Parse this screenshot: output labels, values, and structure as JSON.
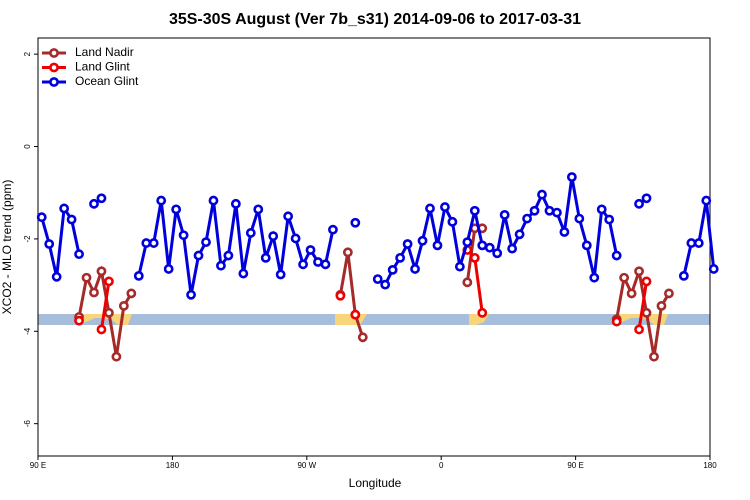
{
  "chart_data": {
    "type": "line",
    "title": "35S-30S August (Ver 7b_s31)   2014-09-06 to 2017-03-31",
    "x_label": "Longitude",
    "y_label": "XCO2 - MLO trend (ppm)",
    "xlim": [
      90,
      540
    ],
    "ylim": [
      -6.7,
      2.35
    ],
    "xticks": [
      {
        "value": 90,
        "label": "90 E"
      },
      180,
      {
        "value": 270,
        "label": "90 W"
      },
      {
        "value": 360,
        "label": "0"
      },
      {
        "value": 450,
        "label": "90 E"
      },
      {
        "value": 540,
        "label": "180"
      }
    ],
    "yticks": [
      2,
      0,
      -2,
      -4,
      -6
    ],
    "legend": "top-left",
    "x": [
      92.5,
      97.5,
      102.5,
      107.5,
      112.5,
      117.5,
      122.5,
      127.5,
      132.5,
      137.5,
      142.5,
      147.5,
      152.5,
      157.5,
      162.5,
      167.5,
      172.5,
      177.5,
      182.5,
      187.5,
      192.5,
      197.5,
      202.5,
      207.5,
      212.5,
      217.5,
      222.5,
      227.5,
      232.5,
      237.5,
      242.5,
      247.5,
      252.5,
      257.5,
      262.5,
      267.5,
      272.5,
      277.5,
      282.5,
      287.5,
      292.5,
      297.5,
      302.5,
      307.5,
      312.5,
      317.5,
      322.5,
      327.5,
      332.5,
      337.5,
      342.5,
      347.5,
      352.5,
      357.5,
      362.5,
      367.5,
      372.5,
      377.5,
      382.5,
      387.5,
      392.5,
      397.5,
      402.5,
      407.5,
      412.5,
      417.5,
      422.5,
      427.5,
      432.5,
      437.5,
      442.5,
      447.5,
      452.5,
      457.5,
      462.5,
      467.5,
      472.5,
      477.5,
      482.5,
      487.5,
      492.5,
      497.5,
      502.5,
      507.5,
      512.5,
      517.5,
      522.5,
      527.5,
      532.5,
      537.5,
      542.5
    ],
    "series": [
      {
        "name": "Land Nadir",
        "color": "#a52a2a",
        "values": [
          null,
          null,
          null,
          null,
          null,
          -3.69,
          -2.84,
          -3.16,
          -2.7,
          -3.6,
          -4.55,
          -3.45,
          -3.18,
          null,
          null,
          null,
          null,
          null,
          null,
          null,
          null,
          null,
          null,
          null,
          null,
          null,
          null,
          null,
          null,
          null,
          null,
          null,
          null,
          null,
          null,
          null,
          null,
          null,
          null,
          null,
          -3.21,
          -2.29,
          -3.64,
          -4.13,
          null,
          null,
          null,
          null,
          null,
          null,
          null,
          null,
          null,
          null,
          null,
          null,
          null,
          -2.94,
          -1.77,
          -1.77,
          null,
          null,
          null,
          null,
          null,
          null,
          null,
          null,
          null,
          null,
          null,
          null,
          null,
          null,
          null,
          null,
          null,
          -3.74,
          -2.84,
          -3.18,
          -2.7,
          -3.6,
          -4.55,
          -3.45,
          -3.18,
          null,
          null,
          null,
          null,
          null,
          null
        ]
      },
      {
        "name": "Land Glint",
        "color": "#ee0000",
        "values": [
          null,
          null,
          null,
          null,
          null,
          -3.77,
          null,
          null,
          -3.96,
          -2.92,
          null,
          null,
          null,
          null,
          null,
          null,
          null,
          null,
          null,
          null,
          null,
          null,
          null,
          null,
          null,
          null,
          null,
          null,
          null,
          null,
          null,
          null,
          null,
          null,
          null,
          null,
          null,
          null,
          null,
          null,
          -3.23,
          null,
          -3.64,
          null,
          null,
          null,
          null,
          null,
          null,
          null,
          null,
          null,
          null,
          null,
          null,
          null,
          null,
          -2.24,
          -2.41,
          -3.6,
          null,
          null,
          null,
          null,
          null,
          null,
          null,
          null,
          null,
          null,
          null,
          null,
          null,
          null,
          null,
          null,
          null,
          -3.79,
          null,
          null,
          -3.96,
          -2.92,
          null,
          null,
          null,
          null,
          null,
          null,
          null,
          null,
          null
        ]
      },
      {
        "name": "Ocean Glint",
        "color": "#0000dd",
        "values": [
          -1.53,
          -2.11,
          -2.82,
          -1.34,
          -1.58,
          -2.33,
          null,
          -1.24,
          -1.12,
          null,
          null,
          null,
          null,
          -2.8,
          -2.09,
          -2.09,
          -1.17,
          -2.65,
          -1.36,
          -1.92,
          -3.21,
          -2.36,
          -2.07,
          -1.17,
          -2.58,
          -2.36,
          -1.24,
          -2.75,
          -1.87,
          -1.36,
          -2.41,
          -1.94,
          -2.77,
          -1.51,
          -1.99,
          -2.55,
          -2.24,
          -2.5,
          -2.55,
          -1.8,
          null,
          null,
          -1.65,
          null,
          null,
          -2.87,
          -2.99,
          -2.67,
          -2.41,
          -2.11,
          -2.65,
          -2.04,
          -1.34,
          -2.14,
          -1.31,
          -1.63,
          -2.6,
          -2.07,
          -1.39,
          -2.14,
          -2.19,
          -2.31,
          -1.48,
          -2.21,
          -1.9,
          -1.56,
          -1.39,
          -1.04,
          -1.39,
          -1.43,
          -1.85,
          -0.66,
          -1.56,
          -2.14,
          -2.84,
          -1.36,
          -1.58,
          -2.36,
          null,
          null,
          -1.24,
          -1.12,
          null,
          null,
          null,
          null,
          -2.8,
          -2.09,
          -2.09,
          -1.17,
          -2.65
        ]
      }
    ]
  }
}
